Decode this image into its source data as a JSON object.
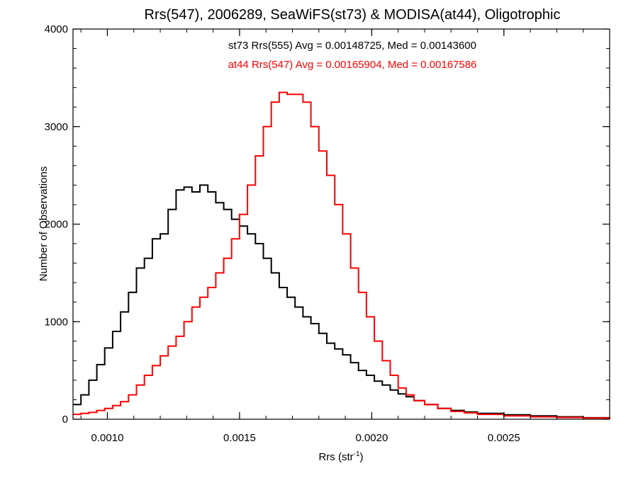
{
  "chart_data": {
    "type": "histogram",
    "title": "Rrs(547), 2006289, SeaWiFS(st73) & MODISA(at44), Oligotrophic",
    "xlabel": {
      "base": "Rrs (str",
      "sup": "-1",
      "tail": ")"
    },
    "ylabel": "Number of Observations",
    "xlim": [
      0.00087,
      0.0029
    ],
    "ylim": [
      0,
      4000
    ],
    "x_ticks": [
      0.001,
      0.0015,
      0.002,
      0.0025
    ],
    "x_tick_labels": [
      "0.0010",
      "0.0015",
      "0.0020",
      "0.0025"
    ],
    "y_ticks": [
      0,
      1000,
      2000,
      3000,
      4000
    ],
    "y_tick_labels": [
      "0",
      "1000",
      "2000",
      "3000",
      "4000"
    ],
    "grid": false,
    "legend_position": "top-center",
    "series": [
      {
        "name": "st73 Rrs(555) Avg = 0.00148725, Med = 0.00143600",
        "color": "#000000",
        "points": [
          [
            0.00087,
            150
          ],
          [
            0.0009,
            250
          ],
          [
            0.00093,
            400
          ],
          [
            0.00096,
            560
          ],
          [
            0.00099,
            730
          ],
          [
            0.00102,
            900
          ],
          [
            0.00105,
            1100
          ],
          [
            0.00108,
            1300
          ],
          [
            0.00111,
            1550
          ],
          [
            0.00114,
            1650
          ],
          [
            0.00117,
            1850
          ],
          [
            0.0012,
            1900
          ],
          [
            0.00123,
            2150
          ],
          [
            0.00126,
            2350
          ],
          [
            0.00129,
            2380
          ],
          [
            0.00132,
            2330
          ],
          [
            0.00135,
            2400
          ],
          [
            0.00138,
            2330
          ],
          [
            0.00141,
            2220
          ],
          [
            0.00144,
            2150
          ],
          [
            0.00147,
            2050
          ],
          [
            0.0015,
            1980
          ],
          [
            0.00153,
            1900
          ],
          [
            0.00156,
            1800
          ],
          [
            0.00159,
            1650
          ],
          [
            0.00162,
            1500
          ],
          [
            0.00165,
            1350
          ],
          [
            0.00168,
            1250
          ],
          [
            0.00171,
            1150
          ],
          [
            0.00174,
            1050
          ],
          [
            0.00177,
            980
          ],
          [
            0.0018,
            880
          ],
          [
            0.00183,
            780
          ],
          [
            0.00186,
            720
          ],
          [
            0.00189,
            660
          ],
          [
            0.00192,
            580
          ],
          [
            0.00195,
            500
          ],
          [
            0.00198,
            450
          ],
          [
            0.00201,
            390
          ],
          [
            0.00204,
            350
          ],
          [
            0.00207,
            300
          ],
          [
            0.0021,
            260
          ],
          [
            0.00213,
            230
          ],
          [
            0.00216,
            190
          ],
          [
            0.0022,
            150
          ],
          [
            0.00225,
            110
          ],
          [
            0.0023,
            90
          ],
          [
            0.00235,
            75
          ],
          [
            0.0024,
            60
          ],
          [
            0.0025,
            45
          ],
          [
            0.0026,
            35
          ],
          [
            0.0027,
            25
          ],
          [
            0.0028,
            15
          ],
          [
            0.0029,
            10
          ]
        ]
      },
      {
        "name": "at44 Rrs(547) Avg = 0.00165904, Med = 0.00167586",
        "color": "#ff0000",
        "points": [
          [
            0.00087,
            50
          ],
          [
            0.0009,
            60
          ],
          [
            0.00093,
            70
          ],
          [
            0.00096,
            90
          ],
          [
            0.00099,
            110
          ],
          [
            0.00102,
            140
          ],
          [
            0.00105,
            180
          ],
          [
            0.00108,
            250
          ],
          [
            0.00111,
            350
          ],
          [
            0.00114,
            450
          ],
          [
            0.00117,
            550
          ],
          [
            0.0012,
            650
          ],
          [
            0.00123,
            750
          ],
          [
            0.00126,
            850
          ],
          [
            0.00129,
            1000
          ],
          [
            0.00132,
            1150
          ],
          [
            0.00135,
            1250
          ],
          [
            0.00138,
            1350
          ],
          [
            0.00141,
            1500
          ],
          [
            0.00144,
            1650
          ],
          [
            0.00147,
            1850
          ],
          [
            0.0015,
            2100
          ],
          [
            0.00153,
            2400
          ],
          [
            0.00156,
            2700
          ],
          [
            0.00159,
            3000
          ],
          [
            0.00162,
            3250
          ],
          [
            0.00165,
            3350
          ],
          [
            0.00168,
            3330
          ],
          [
            0.00171,
            3330
          ],
          [
            0.00174,
            3250
          ],
          [
            0.00177,
            3000
          ],
          [
            0.0018,
            2750
          ],
          [
            0.00183,
            2500
          ],
          [
            0.00186,
            2200
          ],
          [
            0.00189,
            1900
          ],
          [
            0.00192,
            1550
          ],
          [
            0.00195,
            1300
          ],
          [
            0.00198,
            1050
          ],
          [
            0.00201,
            800
          ],
          [
            0.00204,
            600
          ],
          [
            0.00207,
            450
          ],
          [
            0.0021,
            320
          ],
          [
            0.00213,
            250
          ],
          [
            0.00216,
            190
          ],
          [
            0.0022,
            150
          ],
          [
            0.00225,
            110
          ],
          [
            0.0023,
            80
          ],
          [
            0.00235,
            65
          ],
          [
            0.0024,
            50
          ],
          [
            0.0025,
            35
          ],
          [
            0.0026,
            25
          ],
          [
            0.0027,
            18
          ],
          [
            0.0028,
            12
          ],
          [
            0.0029,
            8
          ]
        ]
      }
    ]
  }
}
